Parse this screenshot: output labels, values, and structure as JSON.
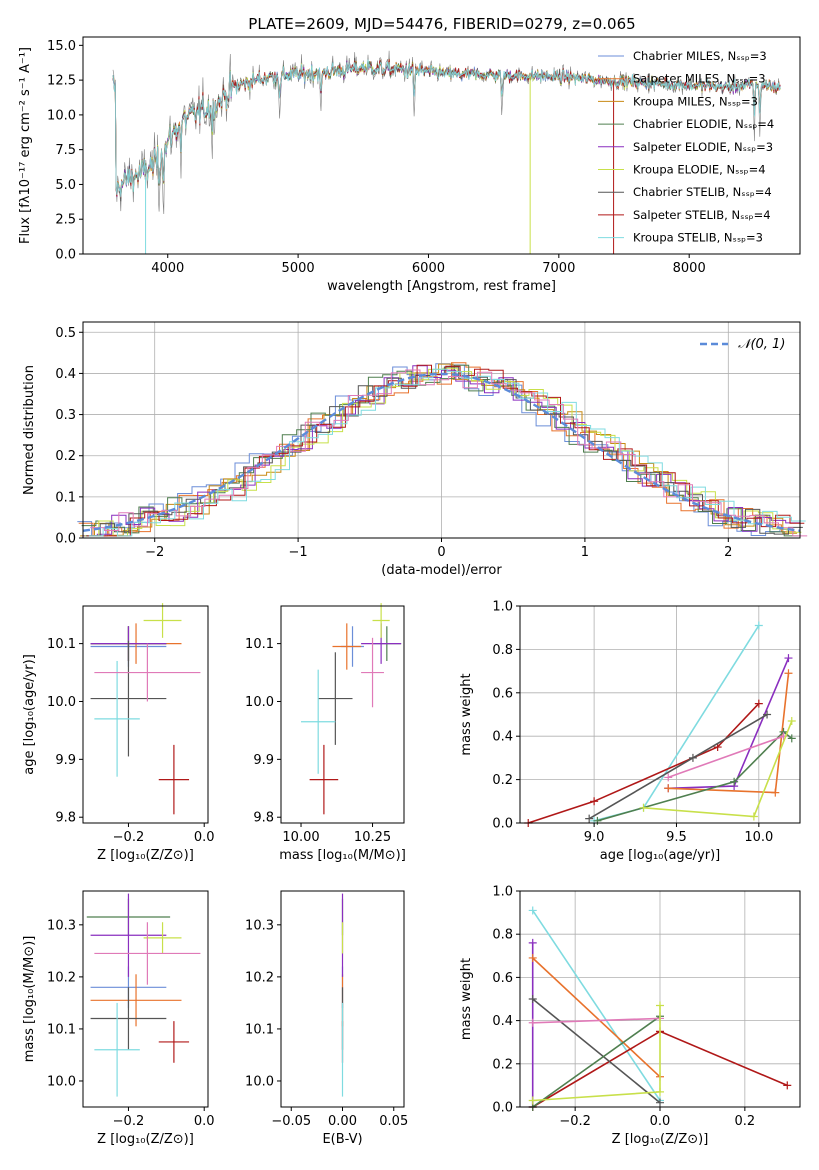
{
  "figure": {
    "title": "PLATE=2609, MJD=54476, FIBERID=0279, z=0.065"
  },
  "chart_data": [
    {
      "id": "spectrum",
      "type": "line",
      "xlabel": "wavelength [Angstrom, rest frame]",
      "ylabel": "Flux [fλ10⁻¹⁷ erg cm⁻² s⁻¹ A⁻¹]",
      "xlim": [
        3350,
        8850
      ],
      "ylim": [
        0,
        15.6
      ],
      "xticks": [
        4000,
        5000,
        6000,
        7000,
        8000
      ],
      "yticks": [
        0.0,
        2.5,
        5.0,
        7.5,
        10.0,
        12.5,
        15.0
      ],
      "legend_position": "top-right",
      "grid": false,
      "series": [
        {
          "name": "Chabrier MILES, Nₛₛₚ=3",
          "color": "#6b8ed8"
        },
        {
          "name": "Salpeter MILES, Nₛₛₚ=3",
          "color": "#e8722c"
        },
        {
          "name": "Kroupa MILES, Nₛₛₚ=3",
          "color": "#c88a14"
        },
        {
          "name": "Chabrier ELODIE, Nₛₛₚ=4",
          "color": "#4f7f4f"
        },
        {
          "name": "Salpeter ELODIE, Nₛₛₚ=3",
          "color": "#8a2fbf"
        },
        {
          "name": "Kroupa ELODIE, Nₛₛₚ=4",
          "color": "#c8e04a"
        },
        {
          "name": "Chabrier STELIB, Nₛₛₚ=4",
          "color": "#555555"
        },
        {
          "name": "Salpeter STELIB, Nₛₛₚ=4",
          "color": "#b01818"
        },
        {
          "name": "Kroupa STELIB, Nₛₛₚ=3",
          "color": "#7fdbe0"
        }
      ],
      "data_color": "#808080",
      "continuum": {
        "x": [
          3600,
          3700,
          3800,
          3900,
          4000,
          4100,
          4200,
          4300,
          4400,
          4500,
          4700,
          4900,
          5100,
          5300,
          5500,
          5700,
          5900,
          6100,
          6300,
          6500,
          6700,
          6900,
          7100,
          7300,
          7500,
          7700,
          7900,
          8100,
          8300,
          8500,
          8700
        ],
        "y": [
          4.5,
          5.5,
          5.8,
          6.5,
          8.0,
          9.5,
          10.0,
          10.5,
          11.0,
          12.0,
          12.6,
          12.9,
          13.0,
          13.2,
          13.4,
          13.3,
          13.2,
          13.0,
          12.9,
          12.9,
          12.8,
          12.8,
          12.7,
          12.5,
          12.4,
          12.3,
          12.2,
          12.1,
          12.0,
          12.2,
          12.0
        ]
      }
    },
    {
      "id": "residuals",
      "type": "histogram",
      "xlabel": "(data-model)/error",
      "ylabel": "Normed distribution",
      "xlim": [
        -2.5,
        2.5
      ],
      "ylim": [
        0,
        0.525
      ],
      "xticks": [
        -2,
        -1,
        0,
        1,
        2
      ],
      "yticks": [
        0.0,
        0.1,
        0.2,
        0.3,
        0.4,
        0.5
      ],
      "grid": true,
      "reference_curve": {
        "name": "𝒩(0, 1)",
        "type": "normal",
        "mean": 0,
        "sigma": 1,
        "color": "#5b8bd9"
      },
      "legend_position": "top-right"
    },
    {
      "id": "age-vs-Z",
      "type": "errorbar",
      "xlabel": "Z [log₁₀(Z/Z⊙)]",
      "ylabel": "age  [log₁₀(age/yr)]",
      "xlim": [
        -0.32,
        0.01
      ],
      "ylim": [
        9.79,
        10.165
      ],
      "xticks": [
        -0.2,
        0.0
      ],
      "yticks": [
        9.8,
        9.9,
        10.0,
        10.1
      ],
      "points": [
        {
          "x": -0.2,
          "xerr": 0.1,
          "y": 10.095,
          "yerr": 0.035,
          "color": "#6b8ed8"
        },
        {
          "x": -0.18,
          "xerr": 0.12,
          "y": 10.1,
          "yerr": 0.035,
          "color": "#e8722c"
        },
        {
          "x": -0.2,
          "xerr": 0.1,
          "y": 10.1,
          "yerr": 0.03,
          "color": "#c88a14"
        },
        {
          "x": -0.2,
          "xerr": 0.1,
          "y": 10.1,
          "yerr": 0.03,
          "color": "#4f7f4f"
        },
        {
          "x": -0.2,
          "xerr": 0.1,
          "y": 10.1,
          "yerr": 0.03,
          "color": "#8a2fbf"
        },
        {
          "x": -0.11,
          "xerr": 0.05,
          "y": 10.14,
          "yerr": 0.03,
          "color": "#c8e04a"
        },
        {
          "x": -0.2,
          "xerr": 0.1,
          "y": 10.005,
          "yerr": 0.1,
          "color": "#555555"
        },
        {
          "x": -0.08,
          "xerr": 0.04,
          "y": 9.865,
          "yerr": 0.06,
          "color": "#b01818"
        },
        {
          "x": -0.23,
          "xerr": 0.06,
          "y": 9.97,
          "yerr": 0.1,
          "color": "#7fdbe0"
        },
        {
          "x": -0.15,
          "xerr": 0.14,
          "y": 10.05,
          "yerr": 0.05,
          "color": "#e07ab8"
        }
      ]
    },
    {
      "id": "age-vs-mass",
      "type": "errorbar",
      "xlabel": "mass [log₁₀(M/M⊙)]",
      "ylabel": "",
      "xlim": [
        9.93,
        10.36
      ],
      "ylim": [
        9.79,
        10.165
      ],
      "xticks": [
        10.0,
        10.25
      ],
      "yticks": [
        9.8,
        9.9,
        10.0,
        10.1
      ],
      "points": [
        {
          "x": 10.18,
          "xerr": 0.04,
          "y": 10.095,
          "yerr": 0.035,
          "color": "#6b8ed8"
        },
        {
          "x": 10.16,
          "xerr": 0.05,
          "y": 10.095,
          "yerr": 0.04,
          "color": "#e8722c"
        },
        {
          "x": 10.3,
          "xerr": 0.05,
          "y": 10.1,
          "yerr": 0.03,
          "color": "#4f7f4f"
        },
        {
          "x": 10.28,
          "xerr": 0.07,
          "y": 10.1,
          "yerr": 0.035,
          "color": "#8a2fbf"
        },
        {
          "x": 10.28,
          "xerr": 0.03,
          "y": 10.14,
          "yerr": 0.03,
          "color": "#c8e04a"
        },
        {
          "x": 10.12,
          "xerr": 0.06,
          "y": 10.005,
          "yerr": 0.08,
          "color": "#555555"
        },
        {
          "x": 10.08,
          "xerr": 0.05,
          "y": 9.865,
          "yerr": 0.06,
          "color": "#b01818"
        },
        {
          "x": 10.06,
          "xerr": 0.06,
          "y": 9.965,
          "yerr": 0.09,
          "color": "#7fdbe0"
        },
        {
          "x": 10.25,
          "xerr": 0.04,
          "y": 10.05,
          "yerr": 0.06,
          "color": "#e07ab8"
        }
      ]
    },
    {
      "id": "weight-vs-age",
      "type": "line",
      "xlabel": "age  [log₁₀(age/yr)]",
      "ylabel": "mass weight",
      "xlim": [
        8.55,
        10.25
      ],
      "ylim": [
        0,
        1.0
      ],
      "xticks": [
        9.0,
        9.5,
        10.0
      ],
      "yticks": [
        0.0,
        0.2,
        0.4,
        0.6,
        0.8,
        1.0
      ],
      "grid": true,
      "series": [
        {
          "color": "#7fdbe0",
          "x": [
            9.0,
            9.3,
            10.0
          ],
          "y": [
            0.01,
            0.07,
            0.91
          ]
        },
        {
          "color": "#8a2fbf",
          "x": [
            9.45,
            9.85,
            10.18
          ],
          "y": [
            0.16,
            0.17,
            0.76
          ]
        },
        {
          "color": "#e8722c",
          "x": [
            9.45,
            10.1,
            10.18
          ],
          "y": [
            0.16,
            0.14,
            0.69
          ]
        },
        {
          "color": "#b01818",
          "x": [
            8.6,
            9.0,
            9.75,
            10.0
          ],
          "y": [
            0.0,
            0.1,
            0.35,
            0.55
          ]
        },
        {
          "color": "#555555",
          "x": [
            8.97,
            9.6,
            10.05
          ],
          "y": [
            0.02,
            0.3,
            0.5
          ]
        },
        {
          "color": "#4f7f4f",
          "x": [
            9.02,
            9.85,
            10.15,
            10.2
          ],
          "y": [
            0.01,
            0.19,
            0.42,
            0.39
          ]
        },
        {
          "color": "#e07ab8",
          "x": [
            9.45,
            10.15
          ],
          "y": [
            0.21,
            0.4
          ]
        },
        {
          "color": "#c8e04a",
          "x": [
            9.3,
            9.97,
            10.2
          ],
          "y": [
            0.07,
            0.03,
            0.47
          ]
        }
      ]
    },
    {
      "id": "mass-vs-Z",
      "type": "errorbar",
      "xlabel": "Z [log₁₀(Z/Z⊙)]",
      "ylabel": "mass [log₁₀(M/M⊙)]",
      "xlim": [
        -0.32,
        0.01
      ],
      "ylim": [
        9.95,
        10.365
      ],
      "xticks": [
        -0.2,
        0.0
      ],
      "yticks": [
        10.0,
        10.1,
        10.2,
        10.3
      ],
      "points": [
        {
          "x": -0.2,
          "xerr": 0.1,
          "y": 10.18,
          "yerr": 0.04,
          "color": "#6b8ed8"
        },
        {
          "x": -0.18,
          "xerr": 0.12,
          "y": 10.155,
          "yerr": 0.05,
          "color": "#e8722c"
        },
        {
          "x": -0.2,
          "xerr": 0.11,
          "y": 10.315,
          "yerr": 0.035,
          "color": "#4f7f4f"
        },
        {
          "x": -0.2,
          "xerr": 0.1,
          "y": 10.28,
          "yerr": 0.08,
          "color": "#8a2fbf"
        },
        {
          "x": -0.11,
          "xerr": 0.05,
          "y": 10.275,
          "yerr": 0.03,
          "color": "#c8e04a"
        },
        {
          "x": -0.2,
          "xerr": 0.1,
          "y": 10.12,
          "yerr": 0.06,
          "color": "#555555"
        },
        {
          "x": -0.08,
          "xerr": 0.04,
          "y": 10.075,
          "yerr": 0.04,
          "color": "#b01818"
        },
        {
          "x": -0.23,
          "xerr": 0.06,
          "y": 10.06,
          "yerr": 0.09,
          "color": "#7fdbe0"
        },
        {
          "x": -0.15,
          "xerr": 0.14,
          "y": 10.245,
          "yerr": 0.06,
          "color": "#e07ab8"
        }
      ]
    },
    {
      "id": "mass-vs-EBV",
      "type": "errorbar",
      "xlabel": "E(B-V)",
      "ylabel": "",
      "xlim": [
        -0.06,
        0.06
      ],
      "ylim": [
        9.95,
        10.365
      ],
      "xticks": [
        -0.05,
        0.0,
        0.05
      ],
      "yticks": [
        10.0,
        10.1,
        10.2,
        10.3
      ],
      "points": [
        {
          "x": 0.0,
          "xerr": 0.0,
          "y": 10.18,
          "yerr": 0.04,
          "color": "#6b8ed8"
        },
        {
          "x": 0.0,
          "xerr": 0.0,
          "y": 10.155,
          "yerr": 0.05,
          "color": "#e8722c"
        },
        {
          "x": 0.0,
          "xerr": 0.0,
          "y": 10.315,
          "yerr": 0.035,
          "color": "#4f7f4f"
        },
        {
          "x": 0.0,
          "xerr": 0.0,
          "y": 10.28,
          "yerr": 0.08,
          "color": "#8a2fbf"
        },
        {
          "x": 0.0,
          "xerr": 0.0,
          "y": 10.275,
          "yerr": 0.03,
          "color": "#c8e04a"
        },
        {
          "x": 0.0,
          "xerr": 0.0,
          "y": 10.12,
          "yerr": 0.06,
          "color": "#555555"
        },
        {
          "x": 0.0,
          "xerr": 0.0,
          "y": 10.075,
          "yerr": 0.04,
          "color": "#b01818"
        },
        {
          "x": 0.0,
          "xerr": 0.0,
          "y": 10.06,
          "yerr": 0.09,
          "color": "#7fdbe0"
        }
      ]
    },
    {
      "id": "weight-vs-Z",
      "type": "line",
      "xlabel": "Z [log₁₀(Z/Z⊙)]",
      "ylabel": "mass weight",
      "xlim": [
        -0.33,
        0.33
      ],
      "ylim": [
        0,
        1.0
      ],
      "xticks": [
        -0.2,
        0.0,
        0.2
      ],
      "yticks": [
        0.0,
        0.2,
        0.4,
        0.6,
        0.8,
        1.0
      ],
      "grid": true,
      "series": [
        {
          "color": "#7fdbe0",
          "x": [
            -0.3,
            0.0
          ],
          "y": [
            0.91,
            0.03
          ]
        },
        {
          "color": "#8a2fbf",
          "x": [
            -0.3,
            -0.3
          ],
          "y": [
            0.76,
            0.0
          ]
        },
        {
          "color": "#e8722c",
          "x": [
            -0.3,
            0.0
          ],
          "y": [
            0.69,
            0.14
          ]
        },
        {
          "color": "#b01818",
          "x": [
            -0.3,
            0.0,
            0.3
          ],
          "y": [
            0.0,
            0.35,
            0.1
          ]
        },
        {
          "color": "#555555",
          "x": [
            -0.3,
            0.0
          ],
          "y": [
            0.5,
            0.02
          ]
        },
        {
          "color": "#4f7f4f",
          "x": [
            -0.3,
            0.0
          ],
          "y": [
            0.0,
            0.42
          ]
        },
        {
          "color": "#e07ab8",
          "x": [
            -0.3,
            0.0
          ],
          "y": [
            0.39,
            0.41
          ]
        },
        {
          "color": "#c8e04a",
          "x": [
            -0.3,
            0.0,
            0.0
          ],
          "y": [
            0.03,
            0.07,
            0.47
          ]
        }
      ]
    }
  ]
}
